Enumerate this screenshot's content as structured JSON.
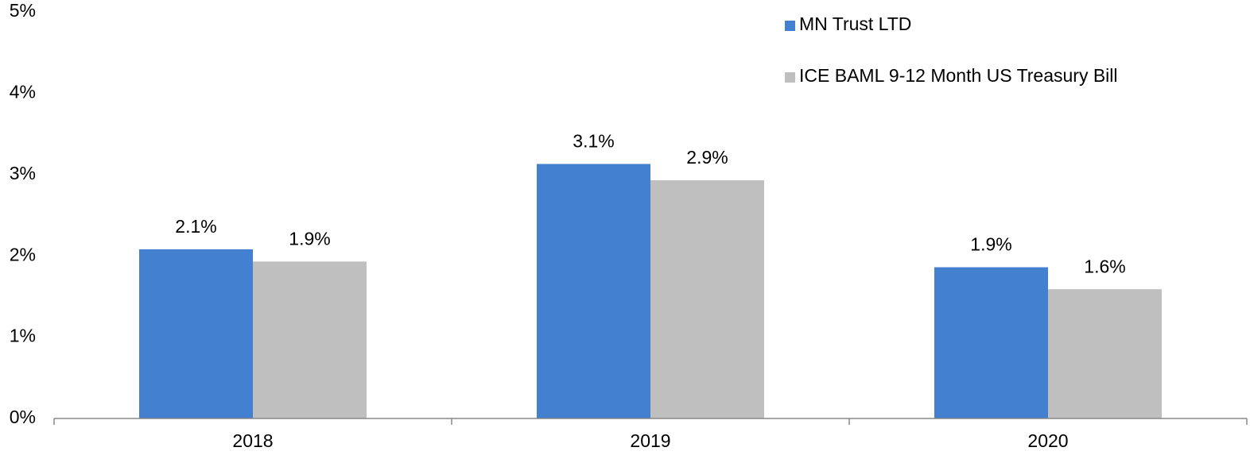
{
  "chart_data": {
    "type": "bar",
    "categories": [
      "2018",
      "2019",
      "2020"
    ],
    "series": [
      {
        "name": "MN Trust LTD",
        "color": "#4380cf",
        "values": [
          2.08,
          3.13,
          1.86
        ],
        "value_labels": [
          "2.1%",
          "3.1%",
          "1.9%"
        ]
      },
      {
        "name": "ICE BAML 9-12 Month US Treasury Bill",
        "color": "#bfbfbf",
        "values": [
          1.93,
          2.93,
          1.59
        ],
        "value_labels": [
          "1.9%",
          "2.9%",
          "1.6%"
        ]
      }
    ],
    "ylim": [
      0,
      5
    ],
    "yticks": [
      {
        "value": 0,
        "label": "0%"
      },
      {
        "value": 1,
        "label": "1%"
      },
      {
        "value": 2,
        "label": "2%"
      },
      {
        "value": 3,
        "label": "3%"
      },
      {
        "value": 4,
        "label": "4%"
      },
      {
        "value": 5,
        "label": "5%"
      }
    ],
    "grid": false,
    "legend": "top-right"
  }
}
